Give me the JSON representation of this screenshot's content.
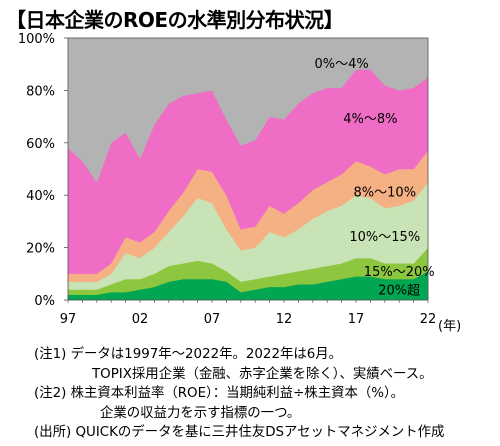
{
  "title": "【日本企業のROEの水準別分布状況】",
  "chart_data": {
    "type": "area",
    "stacked": true,
    "x": [
      "97",
      "98",
      "99",
      "00",
      "01",
      "02",
      "03",
      "04",
      "05",
      "06",
      "07",
      "08",
      "09",
      "10",
      "11",
      "12",
      "13",
      "14",
      "15",
      "16",
      "17",
      "18",
      "19",
      "20",
      "21",
      "22"
    ],
    "x_tick_labels": [
      "97",
      "02",
      "07",
      "12",
      "17",
      "22"
    ],
    "x_unit": "(年)",
    "y_tick_labels": [
      "0%",
      "20%",
      "40%",
      "60%",
      "80%",
      "100%"
    ],
    "ylim": [
      0,
      100
    ],
    "series": [
      {
        "name": "20%超",
        "color": "#00a651",
        "values": [
          2,
          2,
          2,
          3,
          3,
          4,
          5,
          7,
          8,
          8,
          8,
          7,
          3,
          4,
          5,
          5,
          6,
          6,
          7,
          8,
          9,
          9,
          8,
          8,
          8,
          11
        ]
      },
      {
        "name": "15%～20%",
        "color": "#8dc63f",
        "values": [
          2,
          2,
          2,
          3,
          5,
          4,
          5,
          6,
          6,
          7,
          6,
          4,
          4,
          4,
          4,
          5,
          5,
          6,
          6,
          6,
          7,
          7,
          6,
          6,
          6,
          9
        ]
      },
      {
        "name": "10%～15%",
        "color": "#c8e3b5",
        "values": [
          3,
          3,
          3,
          4,
          10,
          8,
          10,
          13,
          18,
          24,
          23,
          16,
          12,
          12,
          17,
          14,
          16,
          19,
          21,
          22,
          24,
          23,
          21,
          22,
          24,
          25
        ]
      },
      {
        "name": "8%～10%",
        "color": "#f5b184",
        "values": [
          3,
          3,
          3,
          4,
          6,
          6,
          6,
          8,
          9,
          11,
          12,
          13,
          8,
          8,
          10,
          9,
          10,
          11,
          11,
          12,
          13,
          12,
          13,
          14,
          12,
          12
        ]
      },
      {
        "name": "4%～8%",
        "color": "#f06dc5",
        "values": [
          48,
          43,
          35,
          46,
          40,
          32,
          41,
          41,
          37,
          29,
          31,
          29,
          32,
          33,
          34,
          36,
          38,
          37,
          36,
          33,
          35,
          37,
          34,
          30,
          31,
          28
        ]
      },
      {
        "name": "0%～4%",
        "color": "#b3b3b3",
        "values": [
          42,
          47,
          55,
          40,
          36,
          46,
          33,
          25,
          22,
          21,
          20,
          31,
          41,
          39,
          30,
          31,
          25,
          21,
          19,
          19,
          12,
          12,
          18,
          20,
          19,
          15
        ]
      }
    ]
  },
  "notes": {
    "note1_line1": "(注1) データは1997年～2022年。2022年は6月。",
    "note1_line2": "TOPIX採用企業（金融、赤字企業を除く）、実績ベース。",
    "note2_line1": "(注2) 株主資本利益率（ROE）：当期純利益÷株主資本（%）。",
    "note2_line2": "企業の収益力を示す指標の一つ。",
    "source": "(出所) QUICKのデータを基に三井住友DSアセットマネジメント作成"
  }
}
